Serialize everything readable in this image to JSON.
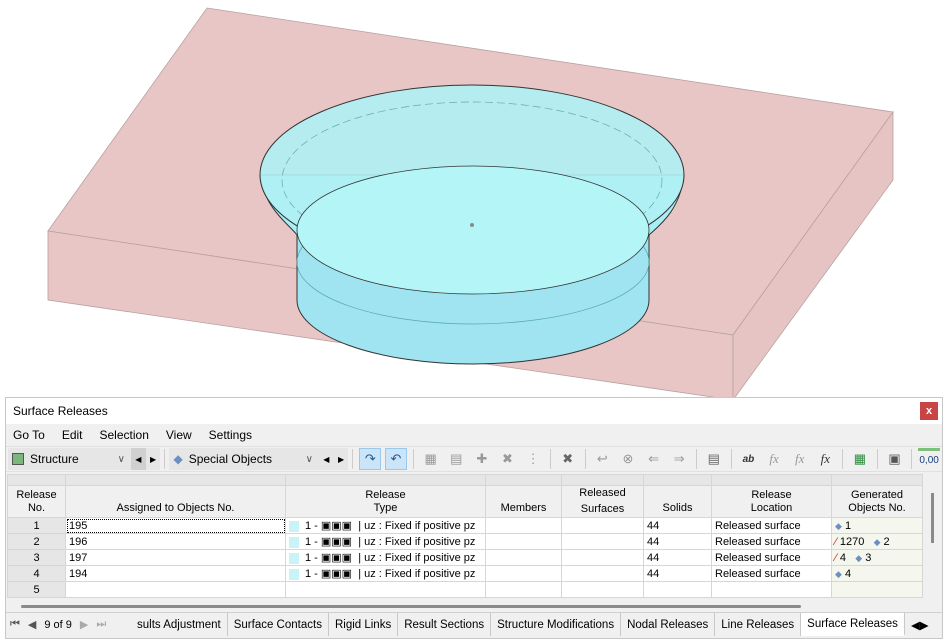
{
  "panel": {
    "title": "Surface Releases",
    "close_label": "x"
  },
  "menu": [
    "Go To",
    "Edit",
    "Selection",
    "View",
    "Settings"
  ],
  "toolbar": {
    "combo1": "Structure",
    "combo2": "Special Objects",
    "number_format": "0,00"
  },
  "table": {
    "headers": {
      "no": "Release\nNo.",
      "assigned": "Assigned to Objects No.",
      "type": "Release\nType",
      "members": "Members",
      "released_group": "Released",
      "surfaces": "Surfaces",
      "solids": "Solids",
      "location": "Release\nLocation",
      "generated": "Generated\nObjects No."
    },
    "rows": [
      {
        "no": "1",
        "assigned": "195",
        "type": "1 - ▣▣▣",
        "type_desc": "| uz : Fixed if positive pz",
        "members": "",
        "surfaces": "",
        "solids": "44",
        "location": "Released surface",
        "gen_line": "",
        "gen_surface": "1"
      },
      {
        "no": "2",
        "assigned": "196",
        "type": "1 - ▣▣▣",
        "type_desc": "| uz : Fixed if positive pz",
        "members": "",
        "surfaces": "",
        "solids": "44",
        "location": "Released surface",
        "gen_line": "1270",
        "gen_surface": "2"
      },
      {
        "no": "3",
        "assigned": "197",
        "type": "1 - ▣▣▣",
        "type_desc": "| uz : Fixed if positive pz",
        "members": "",
        "surfaces": "",
        "solids": "44",
        "location": "Released surface",
        "gen_line": "4",
        "gen_surface": "3"
      },
      {
        "no": "4",
        "assigned": "194",
        "type": "1 - ▣▣▣",
        "type_desc": "| uz : Fixed if positive pz",
        "members": "",
        "surfaces": "",
        "solids": "44",
        "location": "Released surface",
        "gen_line": "",
        "gen_surface": "4"
      },
      {
        "no": "5",
        "assigned": "",
        "type": "",
        "type_desc": "",
        "members": "",
        "surfaces": "",
        "solids": "",
        "location": "",
        "gen_line": "",
        "gen_surface": ""
      }
    ]
  },
  "pager": {
    "text": "9 of 9"
  },
  "tabs": [
    "sults Adjustment",
    "Surface Contacts",
    "Rigid Links",
    "Result Sections",
    "Structure Modifications",
    "Nodal Releases",
    "Line Releases",
    "Surface Releases"
  ],
  "active_tab": "Surface Releases",
  "colors": {
    "slab": "#e8c6c6",
    "solid": "#a8f0f4",
    "close": "#c94545"
  }
}
